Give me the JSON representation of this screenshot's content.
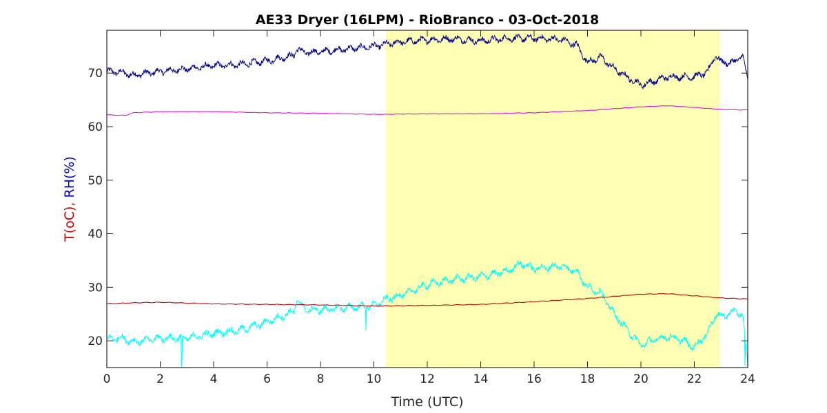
{
  "chart_data": {
    "type": "line",
    "title": "AE33 Dryer (16LPM)  - RioBranco - 03-Oct-2018",
    "xlabel": "Time (UTC)",
    "ylabel_parts": [
      {
        "text": "T(oC),",
        "color": "#d40000"
      },
      {
        "text": "RH(%)",
        "color": "#0000cc"
      }
    ],
    "xlim": [
      0,
      24
    ],
    "ylim": [
      15,
      78
    ],
    "x_ticks": [
      0,
      2,
      4,
      6,
      8,
      10,
      12,
      14,
      16,
      18,
      20,
      22,
      24
    ],
    "y_ticks": [
      20,
      30,
      40,
      50,
      60,
      70
    ],
    "grid": false,
    "highlight": {
      "x_start": 10.45,
      "x_end": 22.95,
      "color": "#ffffb3"
    },
    "series": [
      {
        "color": "#00008b",
        "noise": 0.7,
        "points": [
          [
            0,
            70.3
          ],
          [
            0.5,
            70.2
          ],
          [
            1,
            69.6
          ],
          [
            1.5,
            70
          ],
          [
            2,
            70.3
          ],
          [
            3,
            70.8
          ],
          [
            4,
            71.4
          ],
          [
            5,
            71.6
          ],
          [
            6,
            72.3
          ],
          [
            7,
            73.3
          ],
          [
            7.1,
            74.6
          ],
          [
            7.4,
            73.8
          ],
          [
            8,
            74
          ],
          [
            9,
            74.5
          ],
          [
            10,
            75
          ],
          [
            11,
            75.8
          ],
          [
            12,
            76.2
          ],
          [
            13,
            76.4
          ],
          [
            14,
            76
          ],
          [
            15,
            76.5
          ],
          [
            16,
            76.5
          ],
          [
            17,
            76.3
          ],
          [
            17.6,
            75.2
          ],
          [
            18,
            72
          ],
          [
            18.5,
            73
          ],
          [
            19,
            70.8
          ],
          [
            19.5,
            69.2
          ],
          [
            20,
            67.8
          ],
          [
            20.5,
            68.5
          ],
          [
            21,
            69.3
          ],
          [
            22,
            69.3
          ],
          [
            22.5,
            70.2
          ],
          [
            22.8,
            73.5
          ],
          [
            23,
            72
          ],
          [
            23.5,
            72
          ],
          [
            23.8,
            73.5
          ],
          [
            24,
            68.5
          ]
        ]
      },
      {
        "color": "#e000e0",
        "noise": 0.05,
        "points": [
          [
            0,
            62.2
          ],
          [
            0.7,
            62.1
          ],
          [
            1,
            62.6
          ],
          [
            2,
            62.8
          ],
          [
            4,
            62.8
          ],
          [
            6,
            62.6
          ],
          [
            8,
            62.5
          ],
          [
            10,
            62.3
          ],
          [
            12,
            62.4
          ],
          [
            14,
            62.4
          ],
          [
            16,
            62.6
          ],
          [
            18,
            63
          ],
          [
            20,
            63.7
          ],
          [
            21,
            63.9
          ],
          [
            22,
            63.6
          ],
          [
            23,
            63.2
          ],
          [
            24,
            63.1
          ]
        ]
      },
      {
        "color": "#00ffff",
        "noise": 0.8,
        "spikes": [
          [
            2.8,
            15.2
          ],
          [
            9.7,
            22
          ],
          [
            23.9,
            15.3
          ]
        ],
        "points": [
          [
            0,
            20.3
          ],
          [
            0.5,
            20.6
          ],
          [
            1,
            19.8
          ],
          [
            2,
            20.5
          ],
          [
            3,
            20.5
          ],
          [
            4,
            21.4
          ],
          [
            5,
            22
          ],
          [
            6,
            23.5
          ],
          [
            7,
            25.5
          ],
          [
            7.1,
            27.5
          ],
          [
            7.5,
            25.8
          ],
          [
            8,
            25.8
          ],
          [
            9,
            26.2
          ],
          [
            10,
            26.6
          ],
          [
            10.5,
            27.8
          ],
          [
            11,
            28.5
          ],
          [
            12,
            30.5
          ],
          [
            13,
            31.5
          ],
          [
            14,
            32
          ],
          [
            15,
            33
          ],
          [
            15.5,
            34.5
          ],
          [
            16,
            33.5
          ],
          [
            17,
            34
          ],
          [
            17.6,
            33
          ],
          [
            18,
            30
          ],
          [
            18.5,
            29
          ],
          [
            19,
            25
          ],
          [
            19.5,
            22
          ],
          [
            20,
            19.2
          ],
          [
            20.5,
            20.2
          ],
          [
            21,
            20.8
          ],
          [
            21.5,
            20.2
          ],
          [
            22,
            18.8
          ],
          [
            22.5,
            21.5
          ],
          [
            22.8,
            25
          ],
          [
            23,
            24.5
          ],
          [
            23.5,
            25.5
          ],
          [
            23.8,
            25
          ],
          [
            24,
            15.5
          ]
        ]
      },
      {
        "color": "#b40000",
        "noise": 0.07,
        "points": [
          [
            0,
            26.9
          ],
          [
            1,
            27.1
          ],
          [
            2,
            27.2
          ],
          [
            4,
            26.9
          ],
          [
            6,
            26.8
          ],
          [
            8,
            26.7
          ],
          [
            10,
            26.5
          ],
          [
            12,
            26.6
          ],
          [
            14,
            26.8
          ],
          [
            16,
            27.3
          ],
          [
            18,
            27.9
          ],
          [
            19,
            28.3
          ],
          [
            20,
            28.7
          ],
          [
            21,
            28.8
          ],
          [
            22,
            28.4
          ],
          [
            23,
            28
          ],
          [
            24,
            27.8
          ]
        ]
      }
    ]
  }
}
